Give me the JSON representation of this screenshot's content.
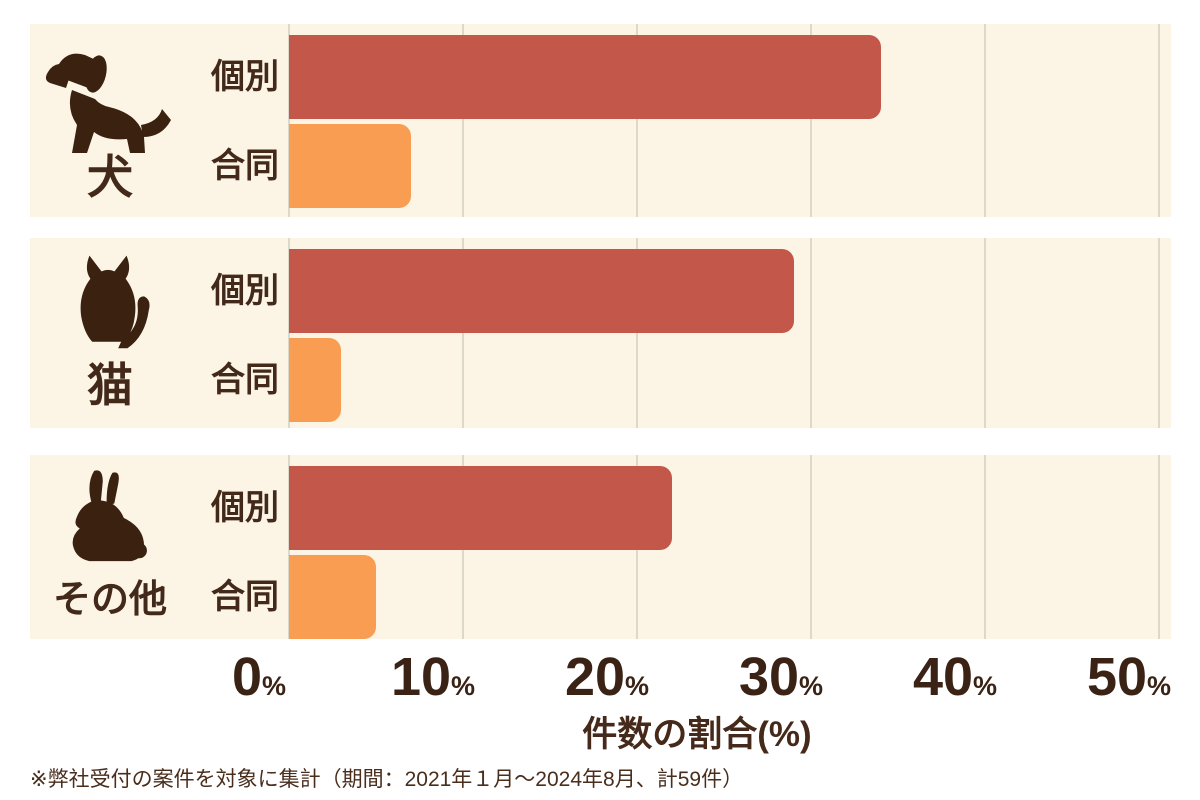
{
  "chart_data": {
    "type": "bar",
    "orientation": "horizontal",
    "xlabel": "件数の割合(%)",
    "xlim": [
      0,
      50
    ],
    "x_ticks": [
      "0",
      "10",
      "20",
      "30",
      "40",
      "50"
    ],
    "tick_suffix": "%",
    "grid": true,
    "groups": [
      {
        "category": "犬",
        "icon": "dog-icon",
        "series": [
          {
            "name": "個別",
            "value": 34,
            "color": "#c2574a"
          },
          {
            "name": "合同",
            "value": 7,
            "color": "#f99d52"
          }
        ]
      },
      {
        "category": "猫",
        "icon": "cat-icon",
        "series": [
          {
            "name": "個別",
            "value": 29,
            "color": "#c2574a"
          },
          {
            "name": "合同",
            "value": 3,
            "color": "#f99d52"
          }
        ]
      },
      {
        "category": "その他",
        "icon": "rabbit-icon",
        "series": [
          {
            "name": "個別",
            "value": 22,
            "color": "#c2574a"
          },
          {
            "name": "合同",
            "value": 5,
            "color": "#f99d52"
          }
        ]
      }
    ],
    "colors": {
      "individual": "#c2574a",
      "joint": "#f99d52",
      "panel_background": "#fcf5e6",
      "gridline": "#dcd8ca",
      "text": "#43291a"
    }
  },
  "footnote": "※弊社受付の案件を対象に集計（期間：2021年１月～2024年8月、計59件）"
}
